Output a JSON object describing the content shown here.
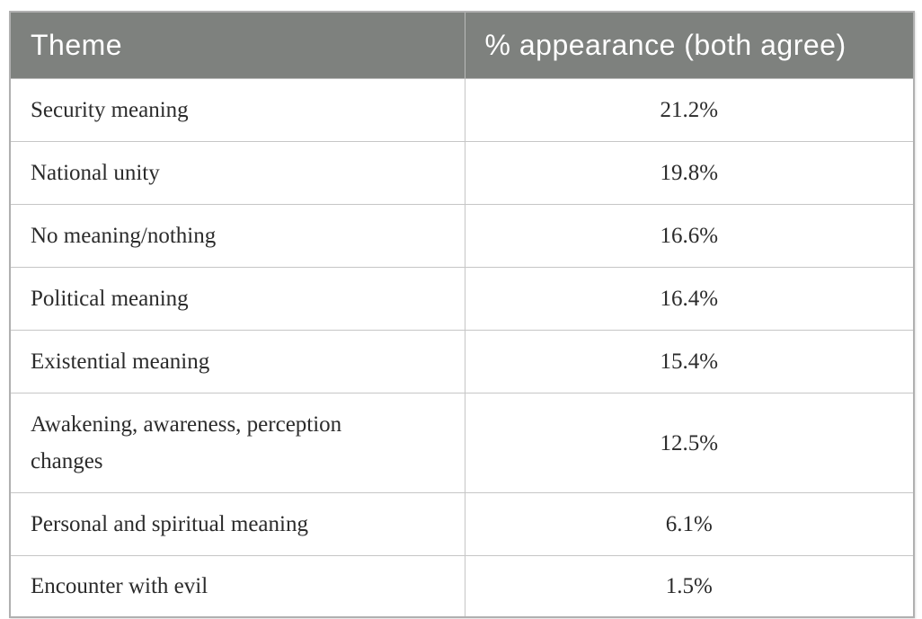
{
  "chart_data": {
    "type": "table",
    "title": "",
    "columns": [
      "Theme",
      "% appearance (both agree)"
    ],
    "rows": [
      [
        "Security meaning",
        21.2
      ],
      [
        "National unity",
        19.8
      ],
      [
        "No meaning/nothing",
        16.6
      ],
      [
        "Political meaning",
        16.4
      ],
      [
        "Existential meaning",
        15.4
      ],
      [
        "Awakening, awareness, perception changes",
        12.5
      ],
      [
        "Personal and spiritual meaning",
        6.1
      ],
      [
        "Encounter with evil",
        1.5
      ]
    ],
    "value_unit": "%"
  },
  "table": {
    "headers": {
      "theme": "Theme",
      "percentage": "% appearance (both agree)"
    },
    "rows": [
      {
        "theme": "Security meaning",
        "value": "21.2%"
      },
      {
        "theme": "National unity",
        "value": "19.8%"
      },
      {
        "theme": "No meaning/nothing",
        "value": "16.6%"
      },
      {
        "theme": "Political meaning",
        "value": "16.4%"
      },
      {
        "theme": "Existential meaning",
        "value": "15.4%"
      },
      {
        "theme": "Awakening, awareness, perception changes",
        "value": "12.5%"
      },
      {
        "theme": "Personal and spiritual meaning",
        "value": "6.1%"
      },
      {
        "theme": "Encounter with evil",
        "value": "1.5%"
      }
    ]
  },
  "colors": {
    "header_bg": "#7e817e",
    "header_text": "#ffffff",
    "body_text": "#2b2b2b",
    "grid_line": "#c6c6c6",
    "outer_border": "#b0b0b0"
  }
}
